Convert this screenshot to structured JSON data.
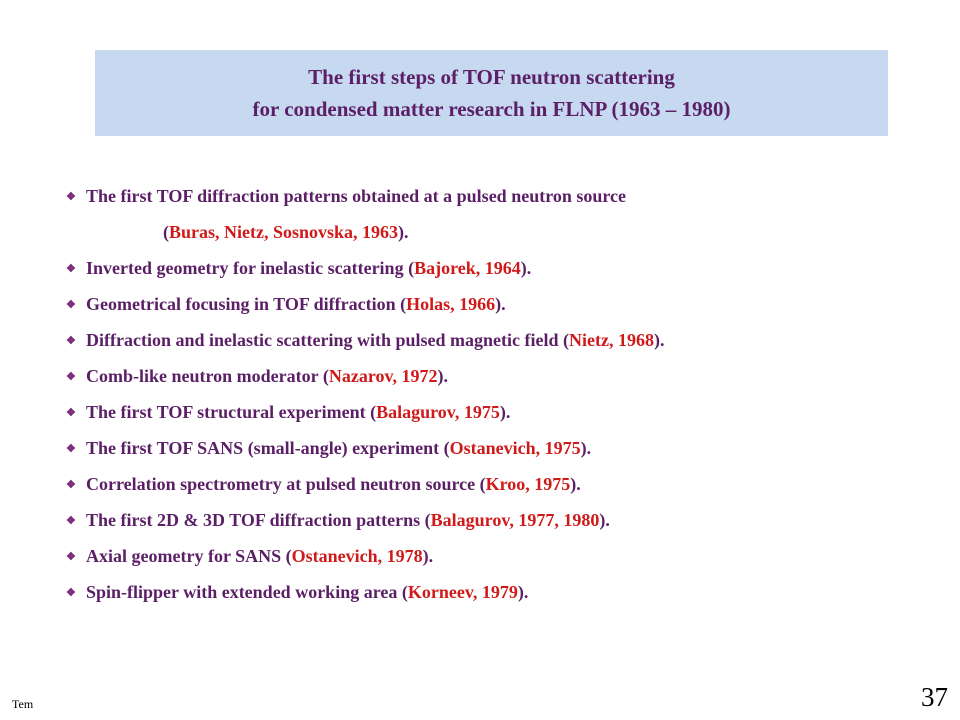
{
  "title": {
    "line1": "The first steps of TOF neutron scattering",
    "line2": "for condensed matter research in FLNP (1963 – 1980)"
  },
  "bullet_glyph": "❖",
  "items": [
    {
      "pre": "The first TOF diffraction patterns obtained at a pulsed neutron source",
      "name": "",
      "post": ""
    },
    {
      "pre": "(",
      "name": "Buras, Nietz, Sosnovska, 1963",
      "post": ")."
    },
    {
      "pre": "Inverted geometry for inelastic scattering (",
      "name": "Bajorek, 1964",
      "post": ")."
    },
    {
      "pre": "Geometrical focusing in TOF diffraction (",
      "name": "Holas, 1966",
      "post": ")."
    },
    {
      "pre": "Diffraction and inelastic scattering with pulsed magnetic field (",
      "name": "Nietz, 1968",
      "post": ")."
    },
    {
      "pre": "Comb-like neutron moderator (",
      "name": "Nazarov, 1972",
      "post": ")."
    },
    {
      "pre": "The first TOF structural experiment (",
      "name": "Balagurov, 1975",
      "post": ")."
    },
    {
      "pre": "The first TOF SANS (small-angle) experiment (",
      "name": "Ostanevich, 1975",
      "post": ")."
    },
    {
      "pre": "Correlation spectrometry at pulsed neutron source (",
      "name": "Kroo, 1975",
      "post": ")."
    },
    {
      "pre": "The first 2D & 3D TOF diffraction patterns (",
      "name": "Balagurov, 1977, 1980",
      "post": ")."
    },
    {
      "pre": "Axial geometry for SANS (",
      "name": "Ostanevich, 1978",
      "post": ")."
    },
    {
      "pre": "Spin-flipper with extended working area (",
      "name": "Korneev, 1979",
      "post": ")."
    }
  ],
  "footer": {
    "left_text": "Tem",
    "page_number": "37"
  }
}
